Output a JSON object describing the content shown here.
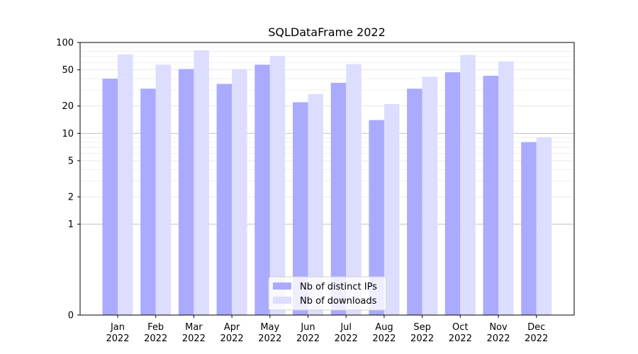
{
  "chart_data": {
    "type": "bar",
    "title": "SQLDataFrame 2022",
    "xlabel": "",
    "ylabel": "",
    "y_scale": "symlog",
    "ylim": [
      0,
      100
    ],
    "y_ticks": [
      0,
      1,
      2,
      5,
      10,
      20,
      50,
      100
    ],
    "y_tick_labels": [
      "0",
      "1",
      "2",
      "5",
      "10",
      "20",
      "50",
      "100"
    ],
    "categories": [
      [
        "Jan",
        "2022"
      ],
      [
        "Feb",
        "2022"
      ],
      [
        "Mar",
        "2022"
      ],
      [
        "Apr",
        "2022"
      ],
      [
        "May",
        "2022"
      ],
      [
        "Jun",
        "2022"
      ],
      [
        "Jul",
        "2022"
      ],
      [
        "Aug",
        "2022"
      ],
      [
        "Sep",
        "2022"
      ],
      [
        "Oct",
        "2022"
      ],
      [
        "Nov",
        "2022"
      ],
      [
        "Dec",
        "2022"
      ]
    ],
    "series": [
      {
        "name": "Nb of distinct IPs",
        "color": "#aaaaff",
        "values": [
          40,
          31,
          51,
          35,
          57,
          22,
          36,
          14,
          31,
          47,
          43,
          8
        ]
      },
      {
        "name": "Nb of downloads",
        "color": "#ddddff",
        "values": [
          74,
          57,
          82,
          51,
          71,
          27,
          58,
          21,
          42,
          73,
          62,
          9
        ]
      }
    ],
    "grid": true,
    "legend_position": "bottom-center"
  }
}
